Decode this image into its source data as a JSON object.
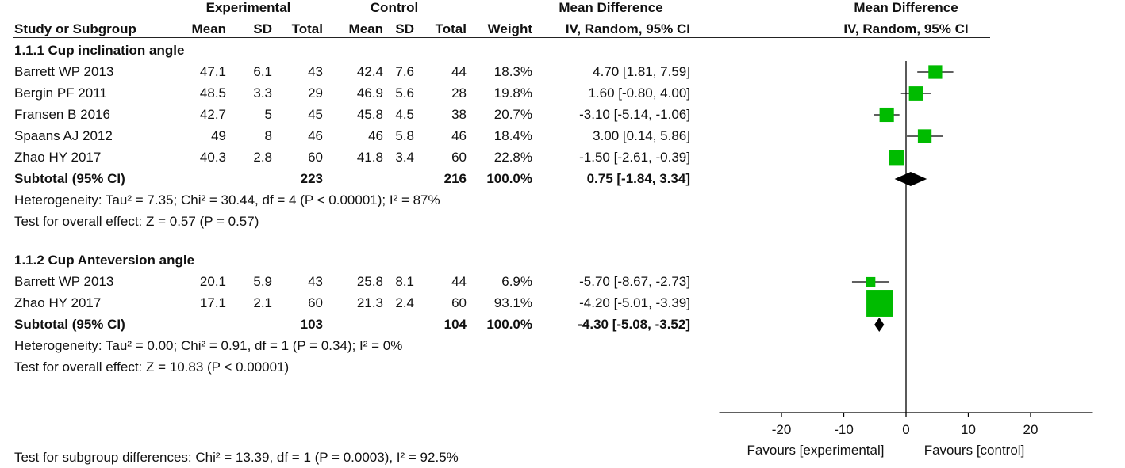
{
  "headers": {
    "group_experimental": "Experimental",
    "group_control": "Control",
    "group_md": "Mean Difference",
    "columns": [
      "Study or Subgroup",
      "Mean",
      "SD",
      "Total",
      "Mean",
      "SD",
      "Total",
      "Weight",
      "IV, Random, 95% CI"
    ],
    "plot_title": "Mean Difference",
    "plot_subtitle": "IV, Random, 95% CI"
  },
  "subgroups": [
    {
      "title": "1.1.1 Cup inclination angle",
      "studies": [
        {
          "name": "Barrett WP 2013",
          "e_mean": "47.1",
          "e_sd": "6.1",
          "e_total": "43",
          "c_mean": "42.4",
          "c_sd": "7.6",
          "c_total": "44",
          "weight": "18.3%",
          "ci_text": "4.70 [1.81, 7.59]",
          "md": 4.7,
          "lo": 1.81,
          "hi": 7.59,
          "w": 18.3
        },
        {
          "name": "Bergin PF 2011",
          "e_mean": "48.5",
          "e_sd": "3.3",
          "e_total": "29",
          "c_mean": "46.9",
          "c_sd": "5.6",
          "c_total": "28",
          "weight": "19.8%",
          "ci_text": "1.60 [-0.80, 4.00]",
          "md": 1.6,
          "lo": -0.8,
          "hi": 4.0,
          "w": 19.8
        },
        {
          "name": "Fransen B 2016",
          "e_mean": "42.7",
          "e_sd": "5",
          "e_total": "45",
          "c_mean": "45.8",
          "c_sd": "4.5",
          "c_total": "38",
          "weight": "20.7%",
          "ci_text": "-3.10 [-5.14, -1.06]",
          "md": -3.1,
          "lo": -5.14,
          "hi": -1.06,
          "w": 20.7
        },
        {
          "name": "Spaans AJ 2012",
          "e_mean": "49",
          "e_sd": "8",
          "e_total": "46",
          "c_mean": "46",
          "c_sd": "5.8",
          "c_total": "46",
          "weight": "18.4%",
          "ci_text": "3.00 [0.14, 5.86]",
          "md": 3.0,
          "lo": 0.14,
          "hi": 5.86,
          "w": 18.4
        },
        {
          "name": "Zhao HY 2017",
          "e_mean": "40.3",
          "e_sd": "2.8",
          "e_total": "60",
          "c_mean": "41.8",
          "c_sd": "3.4",
          "c_total": "60",
          "weight": "22.8%",
          "ci_text": "-1.50 [-2.61, -0.39]",
          "md": -1.5,
          "lo": -2.61,
          "hi": -0.39,
          "w": 22.8
        }
      ],
      "subtotal": {
        "label": "Subtotal (95% CI)",
        "e_total": "223",
        "c_total": "216",
        "weight": "100.0%",
        "ci_text": "0.75 [-1.84, 3.34]",
        "md": 0.75,
        "lo": -1.84,
        "hi": 3.34
      },
      "heterogeneity": "Heterogeneity: Tau² = 7.35; Chi² = 30.44, df = 4 (P < 0.00001); I² = 87%",
      "overall": "Test for overall effect: Z = 0.57 (P = 0.57)"
    },
    {
      "title": "1.1.2 Cup Anteversion angle",
      "studies": [
        {
          "name": "Barrett WP 2013",
          "e_mean": "20.1",
          "e_sd": "5.9",
          "e_total": "43",
          "c_mean": "25.8",
          "c_sd": "8.1",
          "c_total": "44",
          "weight": "6.9%",
          "ci_text": "-5.70 [-8.67, -2.73]",
          "md": -5.7,
          "lo": -8.67,
          "hi": -2.73,
          "w": 6.9
        },
        {
          "name": "Zhao HY 2017",
          "e_mean": "17.1",
          "e_sd": "2.1",
          "e_total": "60",
          "c_mean": "21.3",
          "c_sd": "2.4",
          "c_total": "60",
          "weight": "93.1%",
          "ci_text": "-4.20 [-5.01, -3.39]",
          "md": -4.2,
          "lo": -5.01,
          "hi": -3.39,
          "w": 93.1
        }
      ],
      "subtotal": {
        "label": "Subtotal (95% CI)",
        "e_total": "103",
        "c_total": "104",
        "weight": "100.0%",
        "ci_text": "-4.30 [-5.08, -3.52]",
        "md": -4.3,
        "lo": -5.08,
        "hi": -3.52
      },
      "heterogeneity": "Heterogeneity: Tau² = 0.00; Chi² = 0.91, df = 1 (P = 0.34); I² = 0%",
      "overall": "Test for overall effect: Z = 10.83 (P < 0.00001)"
    }
  ],
  "footer": {
    "subgroup_test": "Test for subgroup differences: Chi² = 13.39, df = 1 (P = 0.0003), I² = 92.5%"
  },
  "chart_data": {
    "type": "scatter",
    "title": "Mean Difference",
    "subtitle": "IV, Random, 95% CI",
    "xlim": [
      -30,
      30
    ],
    "xticks": [
      -20,
      -10,
      0,
      10,
      20
    ],
    "xtick_labels": [
      "-20",
      "-10",
      "0",
      "10",
      "20"
    ],
    "favours_left": "Favours [experimental]",
    "favours_right": "Favours [control]",
    "marker_color": "#00bb00",
    "diamond_color": "#000000",
    "grid": false
  }
}
